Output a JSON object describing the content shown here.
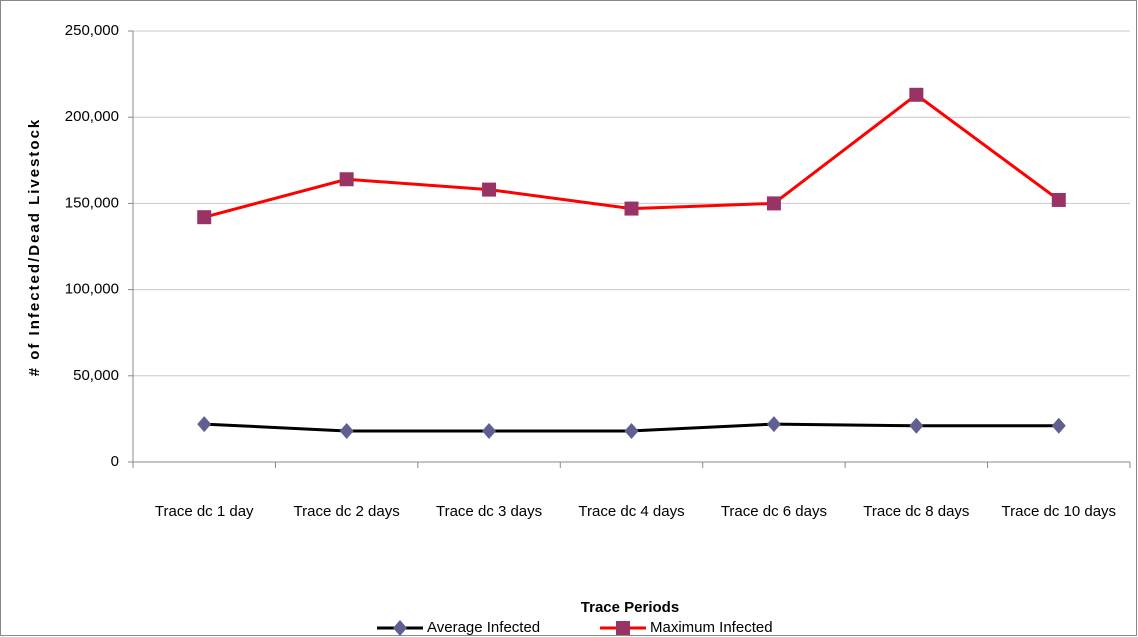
{
  "chart_data": {
    "type": "line",
    "y_label": "# of Infected/Dead Livestock",
    "x_label": "Trace Periods",
    "categories": [
      "Trace dc 1 day",
      "Trace dc 2 days",
      "Trace dc 3 days",
      "Trace dc 4 days",
      "Trace dc 6 days",
      "Trace dc 8 days",
      "Trace dc 10 days"
    ],
    "series": [
      {
        "name": "Average Infected",
        "color": "#000000",
        "marker": "diamond",
        "marker_color": "#5f5f92",
        "values": [
          22000,
          18000,
          18000,
          18000,
          22000,
          21000,
          21000
        ]
      },
      {
        "name": "Maximum Infected",
        "color": "#ff0000",
        "marker": "square",
        "marker_color": "#993366",
        "values": [
          142000,
          164000,
          158000,
          147000,
          150000,
          213000,
          152000
        ]
      }
    ],
    "ylim": [
      0,
      250000
    ],
    "yticks": [
      0,
      {
        "value": 50000,
        "label": "50,000"
      },
      {
        "value": 100000,
        "label": "100,000"
      },
      {
        "value": 150000,
        "label": "150,000"
      },
      {
        "value": 200000,
        "label": "200,000"
      },
      {
        "value": 250000,
        "label": "250,000"
      }
    ],
    "grid": true
  }
}
